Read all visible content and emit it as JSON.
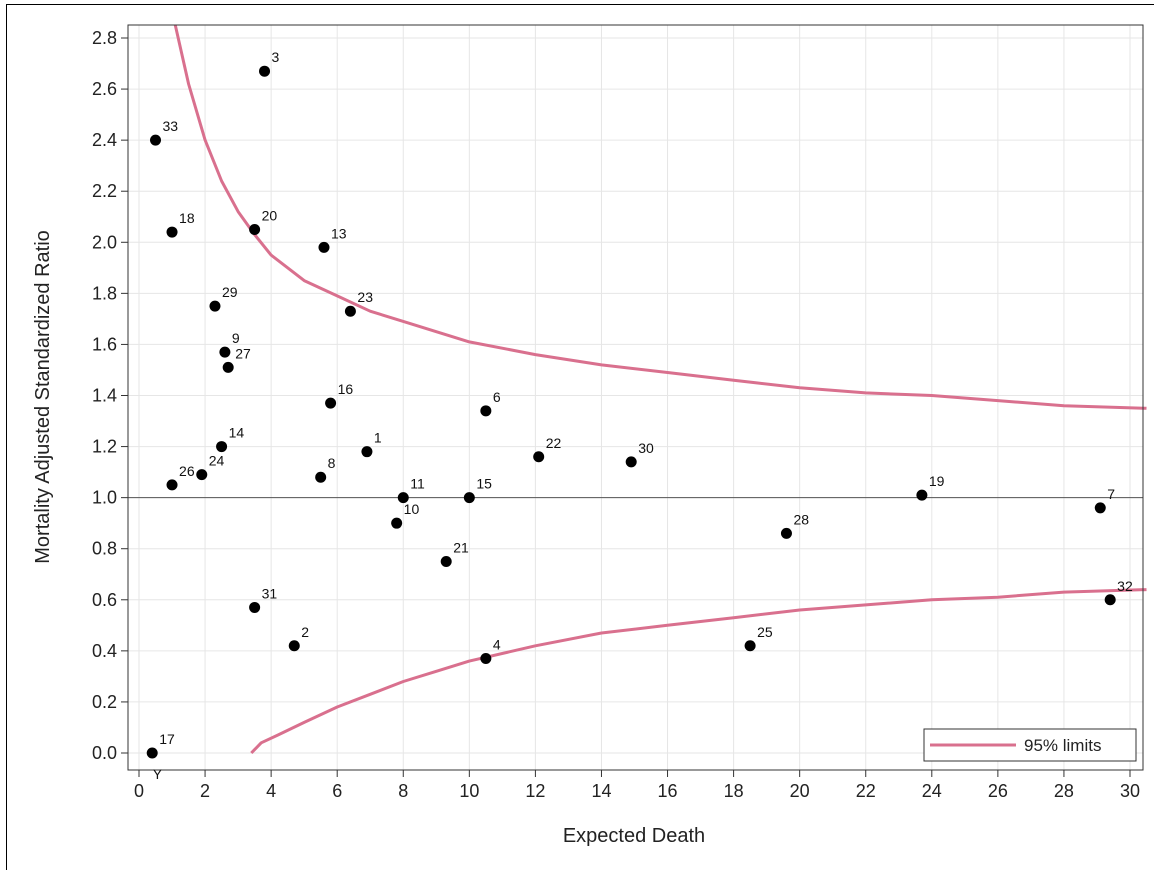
{
  "chart_data": {
    "type": "scatter",
    "title": "",
    "xlabel": "Expected Death",
    "ylabel": "Mortality Adjusted Standardized Ratio",
    "xlim": [
      -0.3,
      30.5
    ],
    "ylim": [
      -0.05,
      2.85
    ],
    "x_ticks": [
      0,
      2,
      4,
      6,
      8,
      10,
      12,
      14,
      16,
      18,
      20,
      22,
      24,
      26,
      28,
      30
    ],
    "y_ticks": [
      "0.0",
      "0.2",
      "0.4",
      "0.6",
      "0.8",
      "1.0",
      "1.2",
      "1.4",
      "1.6",
      "1.8",
      "2.0",
      "2.2",
      "2.4",
      "2.6",
      "2.8"
    ],
    "grid": true,
    "reference_line": 1.0,
    "legend": {
      "position": "bottom-right",
      "label": "95% limits",
      "color": "#d9708e"
    },
    "point_color": "#000000",
    "limit_color": "#d9708e",
    "points": [
      {
        "label": "1",
        "x": 6.9,
        "y": 1.18
      },
      {
        "label": "2",
        "x": 4.7,
        "y": 0.42
      },
      {
        "label": "3",
        "x": 3.8,
        "y": 2.67
      },
      {
        "label": "4",
        "x": 10.5,
        "y": 0.37
      },
      {
        "label": "6",
        "x": 10.5,
        "y": 1.34
      },
      {
        "label": "7",
        "x": 29.1,
        "y": 0.96
      },
      {
        "label": "8",
        "x": 5.5,
        "y": 1.08
      },
      {
        "label": "9",
        "x": 2.6,
        "y": 1.57
      },
      {
        "label": "10",
        "x": 7.8,
        "y": 0.9
      },
      {
        "label": "11",
        "x": 8.0,
        "y": 1.0
      },
      {
        "label": "13",
        "x": 5.6,
        "y": 1.98
      },
      {
        "label": "14",
        "x": 2.5,
        "y": 1.2
      },
      {
        "label": "15",
        "x": 10.0,
        "y": 1.0
      },
      {
        "label": "16",
        "x": 5.8,
        "y": 1.37
      },
      {
        "label": "17",
        "x": 0.4,
        "y": 0.0
      },
      {
        "label": "18",
        "x": 1.0,
        "y": 2.04
      },
      {
        "label": "19",
        "x": 23.7,
        "y": 1.01
      },
      {
        "label": "20",
        "x": 3.5,
        "y": 2.05
      },
      {
        "label": "21",
        "x": 9.3,
        "y": 0.75
      },
      {
        "label": "22",
        "x": 12.1,
        "y": 1.16
      },
      {
        "label": "23",
        "x": 6.4,
        "y": 1.73
      },
      {
        "label": "24",
        "x": 1.9,
        "y": 1.09
      },
      {
        "label": "25",
        "x": 18.5,
        "y": 0.42
      },
      {
        "label": "26",
        "x": 1.0,
        "y": 1.05
      },
      {
        "label": "27",
        "x": 2.7,
        "y": 1.51
      },
      {
        "label": "28",
        "x": 19.6,
        "y": 0.86
      },
      {
        "label": "29",
        "x": 2.3,
        "y": 1.75
      },
      {
        "label": "30",
        "x": 14.9,
        "y": 1.14
      },
      {
        "label": "31",
        "x": 3.5,
        "y": 0.57
      },
      {
        "label": "32",
        "x": 29.4,
        "y": 0.6
      },
      {
        "label": "33",
        "x": 0.5,
        "y": 2.4
      }
    ],
    "upper_limit": [
      [
        1.1,
        2.85
      ],
      [
        1.5,
        2.62
      ],
      [
        2.0,
        2.4
      ],
      [
        2.5,
        2.24
      ],
      [
        3.0,
        2.12
      ],
      [
        3.5,
        2.03
      ],
      [
        4.0,
        1.95
      ],
      [
        5.0,
        1.85
      ],
      [
        6.0,
        1.79
      ],
      [
        7.0,
        1.73
      ],
      [
        8.0,
        1.69
      ],
      [
        10.0,
        1.61
      ],
      [
        12.0,
        1.56
      ],
      [
        14.0,
        1.52
      ],
      [
        16.0,
        1.49
      ],
      [
        18.0,
        1.46
      ],
      [
        20.0,
        1.43
      ],
      [
        22.0,
        1.41
      ],
      [
        24.0,
        1.4
      ],
      [
        26.0,
        1.38
      ],
      [
        28.0,
        1.36
      ],
      [
        30.5,
        1.35
      ]
    ],
    "lower_limit": [
      [
        3.4,
        0.0
      ],
      [
        3.7,
        0.04
      ],
      [
        4.2,
        0.07
      ],
      [
        5.0,
        0.12
      ],
      [
        6.0,
        0.18
      ],
      [
        7.0,
        0.23
      ],
      [
        8.0,
        0.28
      ],
      [
        9.0,
        0.32
      ],
      [
        10.0,
        0.36
      ],
      [
        12.0,
        0.42
      ],
      [
        14.0,
        0.47
      ],
      [
        16.0,
        0.5
      ],
      [
        18.0,
        0.53
      ],
      [
        20.0,
        0.56
      ],
      [
        22.0,
        0.58
      ],
      [
        24.0,
        0.6
      ],
      [
        26.0,
        0.61
      ],
      [
        28.0,
        0.63
      ],
      [
        30.5,
        0.64
      ]
    ],
    "x_axis_marker": {
      "text": "Y",
      "x": 0.8
    }
  }
}
